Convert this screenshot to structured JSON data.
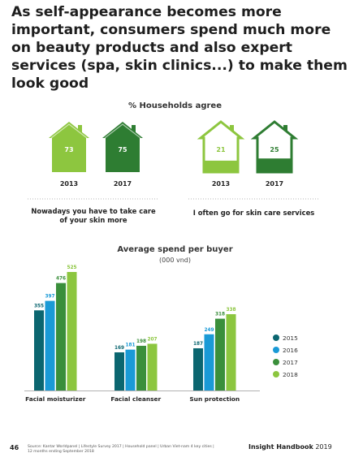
{
  "headline": [
    "As self-appearance becomes more",
    "important, consumers spend much more",
    "on beauty products and also expert",
    "services (spa, skin clinics...) to make them",
    "look good"
  ],
  "colors": {
    "dark_green": "#2e7d32",
    "light_green": "#8dc63f",
    "teal": "#0b6670",
    "blue": "#1a9ad6",
    "green": "#3a8f3b",
    "lime": "#8cc63f"
  },
  "footer": {
    "page_number": "46",
    "source": "Source: Kantar Worldpanel | Lifestyle Survey 2017 | Household panel | Urban Viet-nam 4 key cities | 12 months ending September 2018",
    "brand_bold": "Insight Handbook",
    "brand_year": "2019"
  },
  "chart_data": [
    {
      "type": "pictogram",
      "title": "% Households agree",
      "groups": [
        {
          "label": "Nowadays you have to take care of your skin more",
          "label_lines": [
            "Nowadays you have to take care",
            "of your skin more"
          ],
          "items": [
            {
              "year": "2013",
              "value": 73,
              "icon": "house-icon-filled",
              "color": "#8dc63f"
            },
            {
              "year": "2017",
              "value": 75,
              "icon": "house-icon-filled",
              "color": "#2e7d32"
            }
          ]
        },
        {
          "label": "I often go for skin care services",
          "label_lines": [
            "I often go for skin care services"
          ],
          "items": [
            {
              "year": "2013",
              "value": 21,
              "icon": "house-icon-partial",
              "color": "#8dc63f"
            },
            {
              "year": "2017",
              "value": 25,
              "icon": "house-icon-partial",
              "color": "#2e7d32"
            }
          ]
        }
      ]
    },
    {
      "type": "bar",
      "title": "Average spend per buyer",
      "subtitle": "(000 vnd)",
      "categories": [
        "Facial moisturizer",
        "Facial cleanser",
        "Sun protection"
      ],
      "series": [
        {
          "name": "2015",
          "color": "#0b6670",
          "values": [
            355,
            169,
            187
          ]
        },
        {
          "name": "2016",
          "color": "#1a9ad6",
          "values": [
            397,
            181,
            249
          ]
        },
        {
          "name": "2017",
          "color": "#3a8f3b",
          "values": [
            476,
            198,
            318
          ]
        },
        {
          "name": "2018",
          "color": "#8cc63f",
          "values": [
            525,
            207,
            338
          ]
        }
      ],
      "ylim": [
        0,
        525
      ],
      "legend": "right",
      "grid": false
    }
  ]
}
